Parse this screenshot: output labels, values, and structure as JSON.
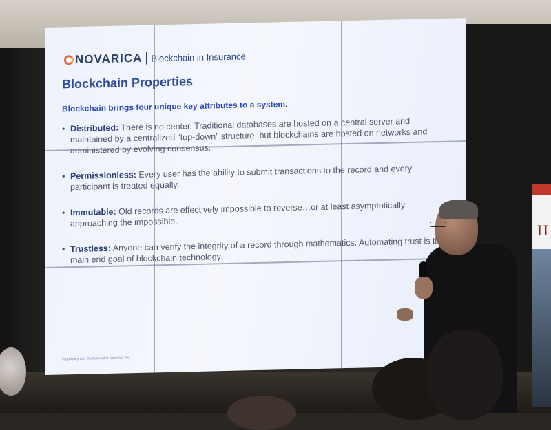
{
  "slide": {
    "logo_name": "NOVARICA",
    "logo_subtitle": "Blockchain in Insurance",
    "title": "Blockchain Properties",
    "lead": "Blockchain brings four unique key attributes to a system.",
    "bullets": [
      {
        "term": "Distributed:",
        "text": " There is no center. Traditional databases are hosted on a central server and maintained by a centralized “top-down” structure, but blockchains are hosted on networks and administered by evolving consensus."
      },
      {
        "term": "Permissionless:",
        "text": " Every user has the ability to submit transactions to the record and every participant is treated equally."
      },
      {
        "term": "Immutable:",
        "text": " Old records are effectively impossible to reverse…or at least asymptotically approaching the impossible."
      },
      {
        "term": "Trustless:",
        "text": " Anyone can verify the integrity of a record through mathematics. Automating trust is the main end goal of blockchain technology."
      }
    ],
    "footer": "Proprietary and Confidential to Novarica, Inc."
  },
  "banner": {
    "letter": "H"
  }
}
